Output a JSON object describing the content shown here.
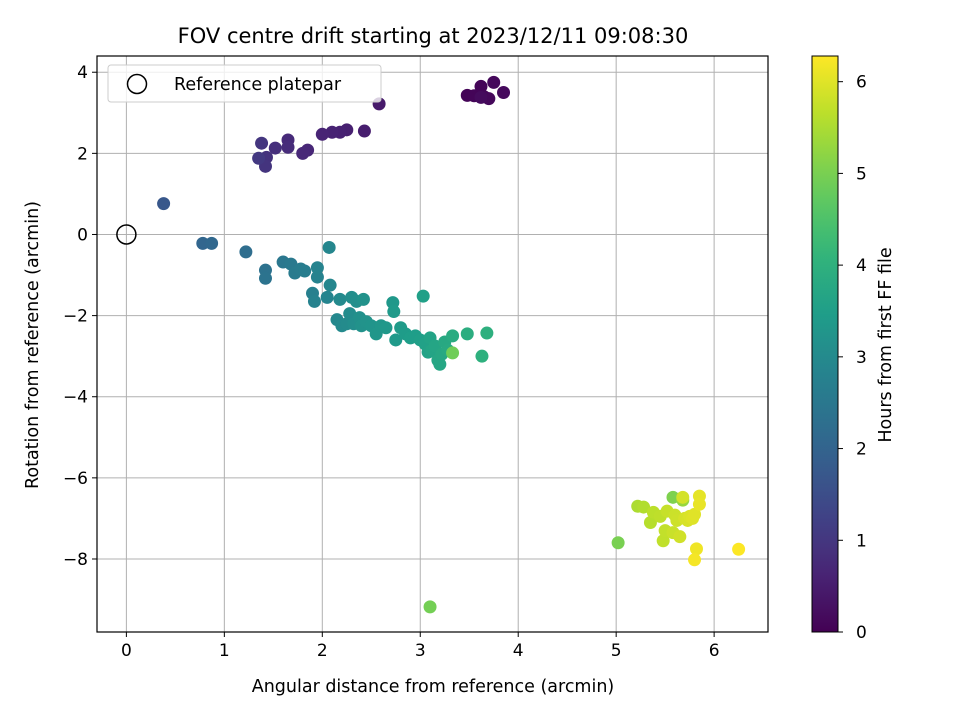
{
  "chart_data": {
    "type": "scatter",
    "title": "FOV centre drift starting at 2023/12/11 09:08:30",
    "xlabel": "Angular distance from reference (arcmin)",
    "ylabel": "Rotation from reference (arcmin)",
    "xlim": [
      -0.3,
      6.55
    ],
    "ylim": [
      -9.8,
      4.4
    ],
    "xticks": [
      0,
      1,
      2,
      3,
      4,
      5,
      6
    ],
    "yticks": [
      4,
      2,
      0,
      -2,
      -4,
      -6,
      -8
    ],
    "grid": true,
    "legend": {
      "position": "top-left",
      "entries": [
        "Reference platepar"
      ]
    },
    "reference_point": {
      "x": 0,
      "y": 0
    },
    "colorbar": {
      "label": "Hours from first FF file",
      "range": [
        0,
        6.28
      ],
      "ticks": [
        0,
        1,
        2,
        3,
        4,
        5,
        6
      ],
      "colormap": "viridis"
    },
    "points": [
      {
        "x": 3.48,
        "y": 3.43,
        "h": 0.05
      },
      {
        "x": 3.55,
        "y": 3.42,
        "h": 0.07
      },
      {
        "x": 3.62,
        "y": 3.65,
        "h": 0.08
      },
      {
        "x": 3.65,
        "y": 3.4,
        "h": 0.1
      },
      {
        "x": 3.7,
        "y": 3.35,
        "h": 0.12
      },
      {
        "x": 3.75,
        "y": 3.75,
        "h": 0.13
      },
      {
        "x": 3.85,
        "y": 3.5,
        "h": 0.15
      },
      {
        "x": 3.62,
        "y": 3.38,
        "h": 0.17
      },
      {
        "x": 2.58,
        "y": 3.22,
        "h": 0.45
      },
      {
        "x": 2.43,
        "y": 2.55,
        "h": 0.5
      },
      {
        "x": 2.25,
        "y": 2.58,
        "h": 0.55
      },
      {
        "x": 2.18,
        "y": 2.52,
        "h": 0.58
      },
      {
        "x": 2.1,
        "y": 2.52,
        "h": 0.6
      },
      {
        "x": 2.0,
        "y": 2.47,
        "h": 0.63
      },
      {
        "x": 1.85,
        "y": 2.08,
        "h": 0.68
      },
      {
        "x": 1.8,
        "y": 2.0,
        "h": 0.7
      },
      {
        "x": 1.65,
        "y": 2.33,
        "h": 0.75
      },
      {
        "x": 1.65,
        "y": 2.15,
        "h": 0.78
      },
      {
        "x": 1.52,
        "y": 2.13,
        "h": 0.85
      },
      {
        "x": 1.43,
        "y": 1.9,
        "h": 0.9
      },
      {
        "x": 1.42,
        "y": 1.68,
        "h": 0.95
      },
      {
        "x": 1.38,
        "y": 2.25,
        "h": 1.0
      },
      {
        "x": 1.35,
        "y": 1.88,
        "h": 1.05
      },
      {
        "x": 0.38,
        "y": 0.76,
        "h": 1.7
      },
      {
        "x": 0.78,
        "y": -0.22,
        "h": 2.05
      },
      {
        "x": 0.87,
        "y": -0.22,
        "h": 2.1
      },
      {
        "x": 1.22,
        "y": -0.43,
        "h": 2.25
      },
      {
        "x": 1.42,
        "y": -0.88,
        "h": 2.35
      },
      {
        "x": 1.42,
        "y": -1.08,
        "h": 2.4
      },
      {
        "x": 1.6,
        "y": -0.68,
        "h": 2.5
      },
      {
        "x": 1.68,
        "y": -0.73,
        "h": 2.55
      },
      {
        "x": 1.72,
        "y": -0.95,
        "h": 2.6
      },
      {
        "x": 1.78,
        "y": -0.85,
        "h": 2.63
      },
      {
        "x": 1.82,
        "y": -0.9,
        "h": 2.65
      },
      {
        "x": 1.9,
        "y": -1.45,
        "h": 2.75
      },
      {
        "x": 1.92,
        "y": -1.65,
        "h": 2.78
      },
      {
        "x": 1.95,
        "y": -1.05,
        "h": 2.8
      },
      {
        "x": 1.95,
        "y": -0.82,
        "h": 2.82
      },
      {
        "x": 2.05,
        "y": -1.55,
        "h": 2.85
      },
      {
        "x": 2.07,
        "y": -0.32,
        "h": 2.88
      },
      {
        "x": 2.08,
        "y": -1.25,
        "h": 2.9
      },
      {
        "x": 2.15,
        "y": -2.1,
        "h": 2.95
      },
      {
        "x": 2.18,
        "y": -1.6,
        "h": 2.98
      },
      {
        "x": 2.2,
        "y": -2.25,
        "h": 3.0
      },
      {
        "x": 2.25,
        "y": -2.2,
        "h": 3.02
      },
      {
        "x": 2.28,
        "y": -1.95,
        "h": 3.05
      },
      {
        "x": 2.3,
        "y": -1.55,
        "h": 3.08
      },
      {
        "x": 2.32,
        "y": -2.2,
        "h": 3.1
      },
      {
        "x": 2.35,
        "y": -1.65,
        "h": 3.12
      },
      {
        "x": 2.38,
        "y": -2.05,
        "h": 3.15
      },
      {
        "x": 2.4,
        "y": -2.25,
        "h": 3.18
      },
      {
        "x": 2.42,
        "y": -1.6,
        "h": 3.2
      },
      {
        "x": 2.45,
        "y": -2.15,
        "h": 3.22
      },
      {
        "x": 2.5,
        "y": -2.25,
        "h": 3.25
      },
      {
        "x": 2.55,
        "y": -2.45,
        "h": 3.28
      },
      {
        "x": 2.6,
        "y": -2.25,
        "h": 3.3
      },
      {
        "x": 2.65,
        "y": -2.3,
        "h": 3.33
      },
      {
        "x": 2.72,
        "y": -1.68,
        "h": 3.35
      },
      {
        "x": 2.73,
        "y": -1.9,
        "h": 3.38
      },
      {
        "x": 2.75,
        "y": -2.6,
        "h": 3.4
      },
      {
        "x": 2.8,
        "y": -2.3,
        "h": 3.42
      },
      {
        "x": 2.85,
        "y": -2.45,
        "h": 3.45
      },
      {
        "x": 2.9,
        "y": -2.55,
        "h": 3.48
      },
      {
        "x": 2.95,
        "y": -2.5,
        "h": 3.5
      },
      {
        "x": 3.0,
        "y": -2.6,
        "h": 3.52
      },
      {
        "x": 3.03,
        "y": -1.52,
        "h": 3.55
      },
      {
        "x": 3.05,
        "y": -2.7,
        "h": 3.58
      },
      {
        "x": 3.08,
        "y": -2.9,
        "h": 3.6
      },
      {
        "x": 3.1,
        "y": -2.55,
        "h": 3.62
      },
      {
        "x": 3.12,
        "y": -2.85,
        "h": 3.65
      },
      {
        "x": 3.15,
        "y": -2.75,
        "h": 3.68
      },
      {
        "x": 3.18,
        "y": -3.1,
        "h": 3.7
      },
      {
        "x": 3.2,
        "y": -3.2,
        "h": 3.72
      },
      {
        "x": 3.22,
        "y": -2.95,
        "h": 3.75
      },
      {
        "x": 3.25,
        "y": -2.65,
        "h": 3.78
      },
      {
        "x": 3.28,
        "y": -2.85,
        "h": 3.8
      },
      {
        "x": 3.33,
        "y": -2.5,
        "h": 3.85
      },
      {
        "x": 3.48,
        "y": -2.45,
        "h": 3.9
      },
      {
        "x": 3.68,
        "y": -2.43,
        "h": 3.95
      },
      {
        "x": 3.63,
        "y": -3.0,
        "h": 3.98
      },
      {
        "x": 3.33,
        "y": -2.92,
        "h": 4.9
      },
      {
        "x": 3.1,
        "y": -9.18,
        "h": 4.95
      },
      {
        "x": 5.02,
        "y": -7.6,
        "h": 5.0
      },
      {
        "x": 5.58,
        "y": -6.48,
        "h": 5.05
      },
      {
        "x": 5.68,
        "y": -6.55,
        "h": 5.3
      },
      {
        "x": 5.22,
        "y": -6.7,
        "h": 5.5
      },
      {
        "x": 5.28,
        "y": -6.72,
        "h": 5.55
      },
      {
        "x": 5.35,
        "y": -7.1,
        "h": 5.6
      },
      {
        "x": 5.38,
        "y": -6.85,
        "h": 5.65
      },
      {
        "x": 5.45,
        "y": -6.95,
        "h": 5.68
      },
      {
        "x": 5.48,
        "y": -7.55,
        "h": 5.7
      },
      {
        "x": 5.5,
        "y": -7.3,
        "h": 5.72
      },
      {
        "x": 5.52,
        "y": -6.82,
        "h": 5.75
      },
      {
        "x": 5.58,
        "y": -7.35,
        "h": 5.78
      },
      {
        "x": 5.6,
        "y": -6.92,
        "h": 5.8
      },
      {
        "x": 5.62,
        "y": -7.05,
        "h": 5.82
      },
      {
        "x": 5.65,
        "y": -7.45,
        "h": 5.85
      },
      {
        "x": 5.68,
        "y": -6.48,
        "h": 5.88
      },
      {
        "x": 5.7,
        "y": -7.0,
        "h": 5.9
      },
      {
        "x": 5.73,
        "y": -7.05,
        "h": 5.92
      },
      {
        "x": 5.75,
        "y": -6.95,
        "h": 5.95
      },
      {
        "x": 5.78,
        "y": -7.0,
        "h": 5.98
      },
      {
        "x": 5.8,
        "y": -6.9,
        "h": 6.0
      },
      {
        "x": 5.85,
        "y": -6.45,
        "h": 6.05
      },
      {
        "x": 5.85,
        "y": -6.65,
        "h": 6.08
      },
      {
        "x": 5.82,
        "y": -7.75,
        "h": 6.15
      },
      {
        "x": 5.8,
        "y": -8.02,
        "h": 6.2
      },
      {
        "x": 6.25,
        "y": -7.76,
        "h": 6.27
      }
    ]
  }
}
